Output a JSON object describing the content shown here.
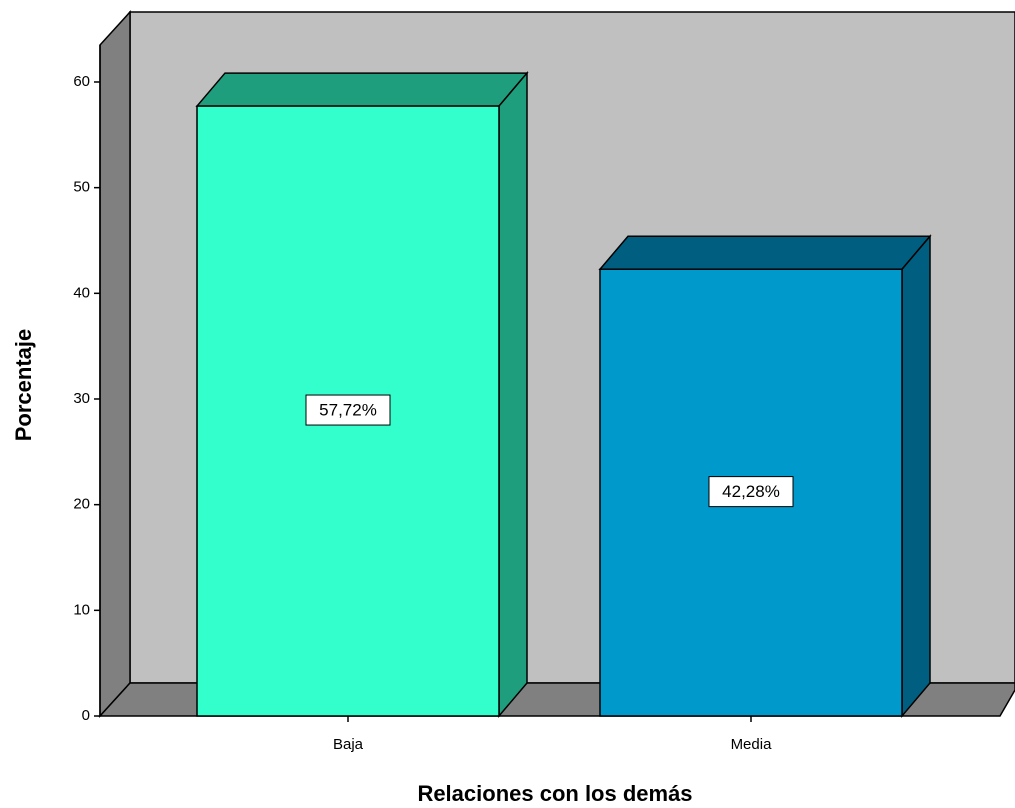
{
  "chart_data": {
    "type": "bar",
    "x_label": "Relaciones con los demás",
    "y_label": "Porcentaje",
    "categories": [
      "Baja",
      "Media"
    ],
    "values": [
      57.72,
      42.28
    ],
    "value_labels": [
      "57,72%",
      "42,28%"
    ],
    "colors": [
      "#33ffcc",
      "#0099cc"
    ],
    "side_colors": [
      "#1f9e7e",
      "#005f80"
    ],
    "ylim": [
      0,
      63.5
    ],
    "yticks": [
      0,
      10,
      20,
      30,
      40,
      50,
      60
    ]
  }
}
